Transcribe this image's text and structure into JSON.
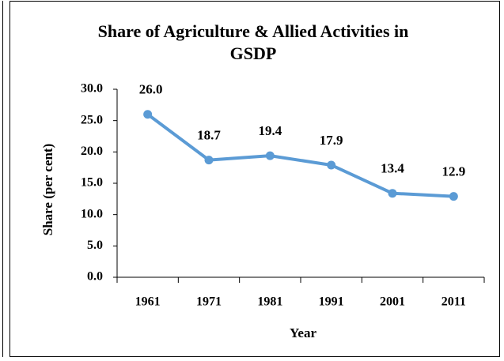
{
  "chart_data": {
    "type": "line",
    "title": "Share of Agriculture & Allied Activities in GSDP",
    "x_label": "Year",
    "y_label": "Share (per cent)",
    "categories": [
      "1961",
      "1971",
      "1981",
      "1991",
      "2001",
      "2011"
    ],
    "series": [
      {
        "name": "Share",
        "color": "#5b9bd5",
        "values": [
          26.0,
          18.7,
          19.4,
          17.9,
          13.4,
          12.9
        ],
        "value_labels": [
          "26.0",
          "18.7",
          "19.4",
          "17.9",
          "13.4",
          "12.9"
        ]
      }
    ],
    "ylim": [
      0,
      30
    ],
    "yticks": [
      {
        "value": 0,
        "label": "0.0"
      },
      {
        "value": 5,
        "label": "5.0"
      },
      {
        "value": 10,
        "label": "10.0"
      },
      {
        "value": 15,
        "label": "15.0"
      },
      {
        "value": 20,
        "label": "20.0"
      },
      {
        "value": 25,
        "label": "25.0"
      },
      {
        "value": 30,
        "label": "30.0"
      }
    ],
    "grid": false
  }
}
